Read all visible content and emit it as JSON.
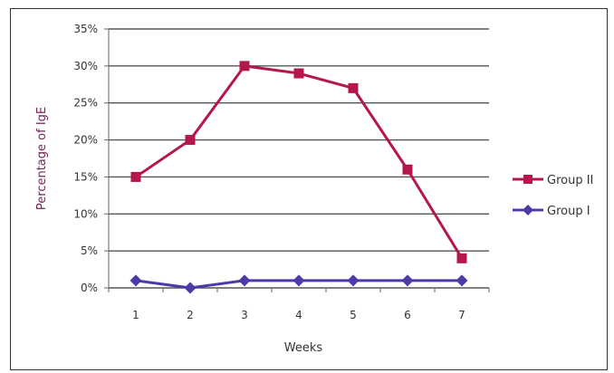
{
  "chart_data": {
    "type": "line",
    "title": "",
    "xlabel": "Weeks",
    "ylabel": "Percentage of IgE",
    "x": [
      "1",
      "2",
      "3",
      "4",
      "5",
      "6",
      "7"
    ],
    "ylim": [
      0,
      35
    ],
    "yticks": [
      "0%",
      "5%",
      "10%",
      "15%",
      "20%",
      "25%",
      "30%",
      "35%"
    ],
    "ytick_values": [
      0,
      5,
      10,
      15,
      20,
      25,
      30,
      35
    ],
    "grid": true,
    "legend_position": "right",
    "series": [
      {
        "name": "Group II",
        "values": [
          15,
          20,
          30,
          29,
          27,
          16,
          4
        ],
        "color": "#b5174a",
        "marker": "square"
      },
      {
        "name": "Group I",
        "values": [
          1,
          0,
          1,
          1,
          1,
          1,
          1
        ],
        "color": "#4b3aa7",
        "marker": "diamond"
      }
    ],
    "ylabel_color": "#7a1f5c"
  }
}
